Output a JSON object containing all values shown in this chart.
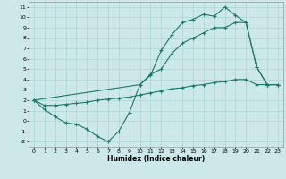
{
  "xlabel": "Humidex (Indice chaleur)",
  "bg_color": "#cce8e8",
  "grid_color": "#aad4d4",
  "line_color": "#1a7a6e",
  "xlim": [
    -0.5,
    23.5
  ],
  "ylim": [
    -2.5,
    11.5
  ],
  "xticks": [
    0,
    1,
    2,
    3,
    4,
    5,
    6,
    7,
    8,
    9,
    10,
    11,
    12,
    13,
    14,
    15,
    16,
    17,
    18,
    19,
    20,
    21,
    22,
    23
  ],
  "yticks": [
    -2,
    -1,
    0,
    1,
    2,
    3,
    4,
    5,
    6,
    7,
    8,
    9,
    10,
    11
  ],
  "line1_x": [
    0,
    1,
    2,
    3,
    4,
    5,
    6,
    7,
    8,
    9,
    10,
    11,
    12,
    13,
    14,
    15,
    16,
    17,
    18,
    19,
    20,
    21,
    22,
    23
  ],
  "line1_y": [
    2.0,
    1.1,
    0.4,
    -0.2,
    -0.3,
    -0.8,
    -1.5,
    -2.0,
    -1.0,
    0.8,
    3.5,
    4.4,
    6.8,
    8.3,
    9.5,
    9.8,
    10.3,
    10.1,
    11.0,
    10.2,
    9.5,
    5.2,
    3.5,
    3.5
  ],
  "line2_x": [
    0,
    1,
    2,
    3,
    4,
    5,
    6,
    7,
    8,
    9,
    10,
    11,
    12,
    13,
    14,
    15,
    16,
    17,
    18,
    19,
    20,
    21,
    22,
    23
  ],
  "line2_y": [
    2.0,
    1.5,
    1.5,
    1.6,
    1.7,
    1.8,
    2.0,
    2.1,
    2.2,
    2.3,
    2.5,
    2.7,
    2.9,
    3.1,
    3.2,
    3.4,
    3.5,
    3.7,
    3.8,
    4.0,
    4.0,
    3.5,
    3.5,
    3.5
  ],
  "line3_x": [
    0,
    10,
    11,
    12,
    13,
    14,
    15,
    16,
    17,
    18,
    19,
    20,
    21,
    22,
    23
  ],
  "line3_y": [
    2.0,
    3.5,
    4.5,
    5.0,
    6.5,
    7.5,
    8.0,
    8.5,
    9.0,
    9.0,
    9.5,
    9.5,
    5.2,
    3.5,
    3.5
  ]
}
